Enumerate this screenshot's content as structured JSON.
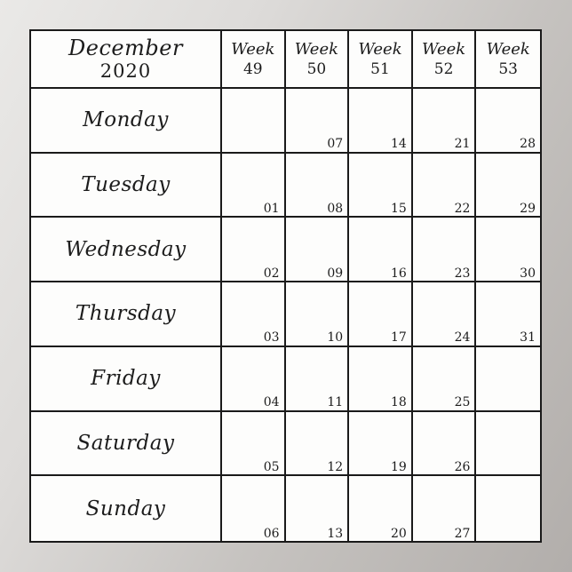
{
  "poster": {
    "background_gradient_start": "#eae9e7",
    "background_gradient_end": "#b2aeab",
    "grid_line_color": "#1a1a1a",
    "cell_background": "#fdfdfc"
  },
  "calendar": {
    "month": "December",
    "year": "2020",
    "week_label": "Week",
    "weeks": [
      "49",
      "50",
      "51",
      "52",
      "53"
    ],
    "days": [
      {
        "name": "Monday",
        "dates": [
          "",
          "07",
          "14",
          "21",
          "28"
        ]
      },
      {
        "name": "Tuesday",
        "dates": [
          "01",
          "08",
          "15",
          "22",
          "29"
        ]
      },
      {
        "name": "Wednesday",
        "dates": [
          "02",
          "09",
          "16",
          "23",
          "30"
        ]
      },
      {
        "name": "Thursday",
        "dates": [
          "03",
          "10",
          "17",
          "24",
          "31"
        ]
      },
      {
        "name": "Friday",
        "dates": [
          "04",
          "11",
          "18",
          "25",
          ""
        ]
      },
      {
        "name": "Saturday",
        "dates": [
          "05",
          "12",
          "19",
          "26",
          ""
        ]
      },
      {
        "name": "Sunday",
        "dates": [
          "06",
          "13",
          "20",
          "27",
          ""
        ]
      }
    ]
  }
}
